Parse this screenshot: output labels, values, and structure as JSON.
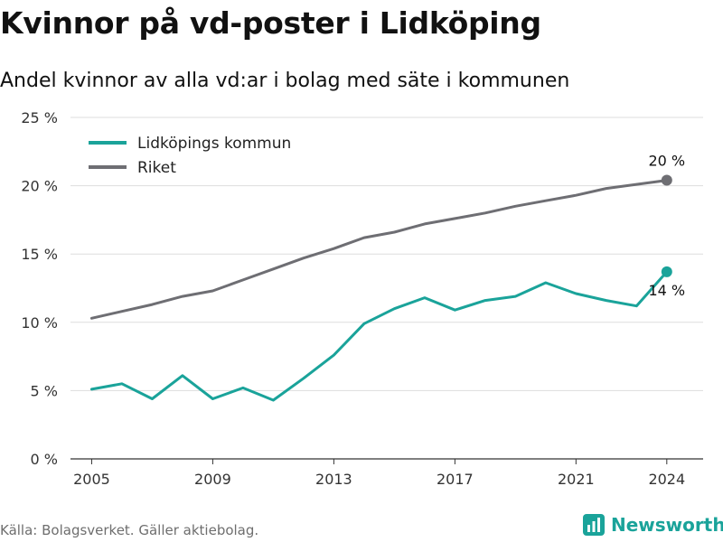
{
  "title": "Kvinnor på vd-poster i Lidköping",
  "subtitle": "Andel kvinnor av alla vd:ar i bolag med säte i kommunen",
  "source": "Källa: Bolagsverket. Gäller aktiebolag.",
  "brand": "Newsworthy",
  "colors": {
    "lidkoping": "#1aa39a",
    "riket": "#6e6e73",
    "grid": "#dddddd",
    "brand": "#1aa39a"
  },
  "chart_data": {
    "type": "line",
    "x": [
      2005,
      2006,
      2007,
      2008,
      2009,
      2010,
      2011,
      2012,
      2013,
      2014,
      2015,
      2016,
      2017,
      2018,
      2019,
      2020,
      2021,
      2022,
      2023,
      2024
    ],
    "series": [
      {
        "name": "Lidköpings kommun",
        "values": [
          5.1,
          5.5,
          4.4,
          6.1,
          4.4,
          5.2,
          4.3,
          5.9,
          7.6,
          9.9,
          11.0,
          11.8,
          10.9,
          11.6,
          11.9,
          12.9,
          12.1,
          11.6,
          11.2,
          13.7
        ]
      },
      {
        "name": "Riket",
        "values": [
          10.3,
          10.8,
          11.3,
          11.9,
          12.3,
          13.1,
          13.9,
          14.7,
          15.4,
          16.2,
          16.6,
          17.2,
          17.6,
          18.0,
          18.5,
          18.9,
          19.3,
          19.8,
          20.1,
          20.4
        ]
      }
    ],
    "end_labels": [
      "14 %",
      "20 %"
    ],
    "yticks": [
      "0 %",
      "5 %",
      "10 %",
      "15 %",
      "20 %",
      "25 %"
    ],
    "xticks": [
      "2005",
      "2009",
      "2013",
      "2017",
      "2021",
      "2024"
    ],
    "ylim": [
      0,
      25
    ],
    "grid": true,
    "legend_position": "top-left"
  }
}
